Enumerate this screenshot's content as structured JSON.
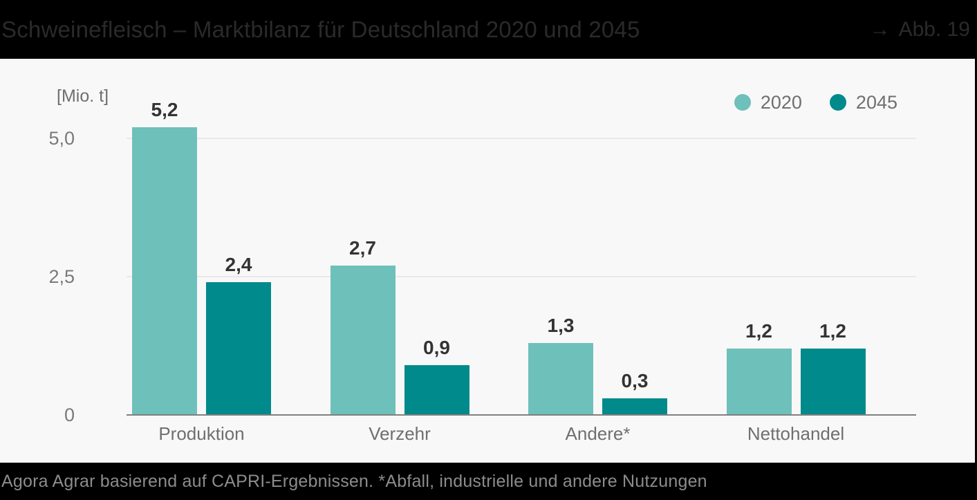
{
  "header": {
    "title": "Schweinefleisch – Marktbilanz für Deutschland 2020 und 2045",
    "figure_ref_arrow": "→",
    "figure_ref": "Abb. 19"
  },
  "footer": {
    "source_note": "Agora Agrar basierend auf CAPRI-Ergebnissen. *Abfall, industrielle und andere Nutzungen"
  },
  "chart_data": {
    "type": "bar",
    "title": "Schweinefleisch – Marktbilanz für Deutschland 2020 und 2045",
    "unit_label": "[Mio. t]",
    "xlabel": "",
    "ylabel": "[Mio. t]",
    "categories": [
      "Produktion",
      "Verzehr",
      "Andere*",
      "Nettohandel"
    ],
    "series": [
      {
        "name": "2020",
        "color": "#6ec0ba",
        "values": [
          5.2,
          2.7,
          1.3,
          1.2
        ],
        "value_labels": [
          "5,2",
          "2,7",
          "1,3",
          "1,2"
        ]
      },
      {
        "name": "2045",
        "color": "#008a8b",
        "values": [
          2.4,
          0.9,
          0.3,
          1.2
        ],
        "value_labels": [
          "2,4",
          "0,9",
          "0,3",
          "1,2"
        ]
      }
    ],
    "y_ticks": [
      {
        "value": 0,
        "label": "0"
      },
      {
        "value": 2.5,
        "label": "2,5"
      },
      {
        "value": 5,
        "label": "5,0"
      }
    ],
    "ylim": [
      0,
      6
    ],
    "grid": true,
    "legend_position": "top-right"
  },
  "colors": {
    "series_2020": "#6ec0ba",
    "series_2045": "#008a8b",
    "header_bg": "#000000",
    "header_text": "#2a2a2a",
    "footer_text": "#8c8c8c",
    "background": "#f8f8f8",
    "gridline": "#e9e9e9",
    "axis_line": "#808080",
    "tick_text": "#7a7a7a",
    "value_text": "#333333"
  }
}
